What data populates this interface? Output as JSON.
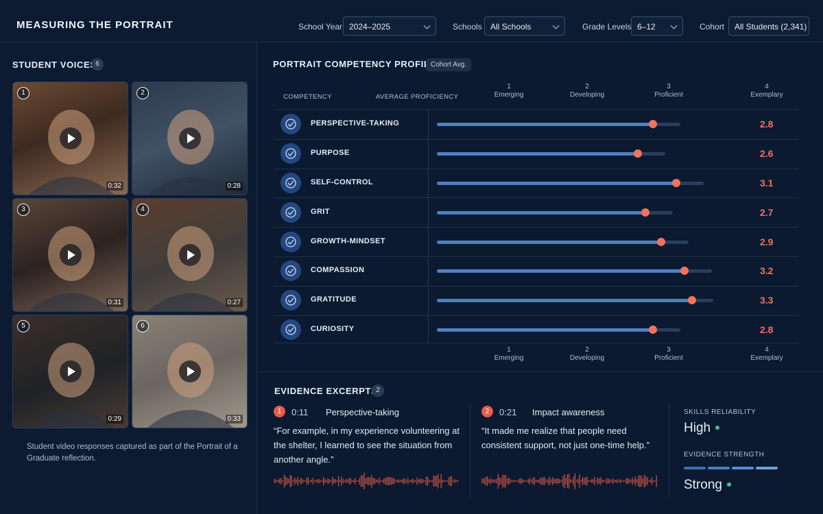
{
  "header": {
    "title": "MEASURING THE PORTRAIT",
    "filters": [
      {
        "label": "School Year",
        "value": "2024–2025"
      },
      {
        "label": "Schools",
        "value": "All Schools"
      },
      {
        "label": "Grade Levels",
        "value": "6–12"
      },
      {
        "label": "Cohort",
        "value": "All Students (2,341)"
      }
    ]
  },
  "voices": {
    "title": "STUDENT VOICES",
    "count": "6",
    "videos": [
      {
        "num": "1",
        "duration": "0:32"
      },
      {
        "num": "2",
        "duration": "0:28"
      },
      {
        "num": "3",
        "duration": "0:31"
      },
      {
        "num": "4",
        "duration": "0:27"
      },
      {
        "num": "5",
        "duration": "0:29"
      },
      {
        "num": "6",
        "duration": "0:33"
      }
    ],
    "caption": "Student video responses captured as part of the Portrait of a Graduate reflection."
  },
  "profile": {
    "title": "PORTRAIT COMPETENCY PROFILE",
    "badge": "Cohort Avg.",
    "col_competency": "COMPETENCY",
    "col_average": "AVERAGE PROFICIENCY",
    "scale": [
      {
        "num": "1",
        "label": "Emerging"
      },
      {
        "num": "2",
        "label": "Developing"
      },
      {
        "num": "3",
        "label": "Proficient"
      },
      {
        "num": "4",
        "label": "Exemplary"
      }
    ]
  },
  "chart_data": {
    "type": "bar",
    "orientation": "horizontal",
    "categories": [
      "PERSPECTIVE-TAKING",
      "PURPOSE",
      "SELF-CONTROL",
      "GRIT",
      "GROWTH-MINDSET",
      "COMPASSION",
      "GRATITUDE",
      "CURIOSITY"
    ],
    "values": [
      2.8,
      2.6,
      3.1,
      2.7,
      2.9,
      3.2,
      3.3,
      2.8
    ],
    "value_labels": [
      "2.8",
      "2.6",
      "3.1",
      "2.7",
      "2.9",
      "3.2",
      "3.3",
      "2.8"
    ],
    "xlim": [
      0,
      4
    ],
    "x_ticks": [
      1,
      2,
      3,
      4
    ],
    "title": "PORTRAIT COMPETENCY PROFILE",
    "colors": {
      "bar": "#4f7ec2",
      "marker": "#f0735c",
      "value": "#f0735c"
    }
  },
  "evidence": {
    "title": "EVIDENCE EXCERPTS",
    "count": "2",
    "items": [
      {
        "num": "1",
        "time": "0:11",
        "topic": "Perspective-taking",
        "quote": "“For example, in my experience volunteering at the shelter, I learned to see the situation from another angle.”"
      },
      {
        "num": "2",
        "time": "0:21",
        "topic": "Impact awareness",
        "quote": "“It made me realize that people need consistent support, not just one-time help.”"
      }
    ],
    "reliability_label": "SKILLS RELIABILITY",
    "reliability_value": "High",
    "strength_label": "EVIDENCE STRENGTH",
    "strength_value": "Strong"
  }
}
